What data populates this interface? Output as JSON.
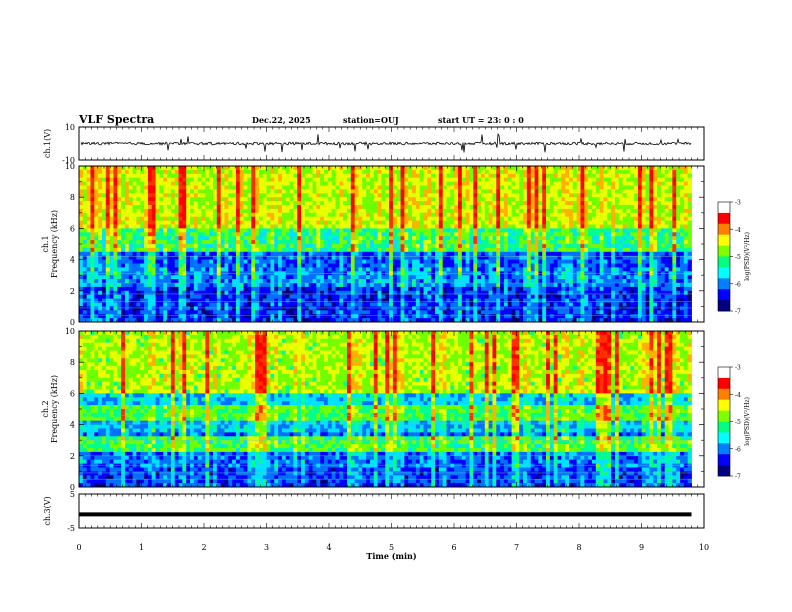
{
  "header": {
    "title": "VLF Spectra",
    "date": "Dec.22, 2025",
    "station": "station=OUJ",
    "start": "start  UT =   23: 0  : 0"
  },
  "chart_data": [
    {
      "type": "line",
      "panel": "ch1-waveform",
      "ylabel": "ch.1(V)",
      "ylim": [
        -10,
        10
      ],
      "yticks": [
        "10",
        "-10"
      ],
      "xlim": [
        0,
        10
      ],
      "description_values": {
        "baseline": 0,
        "typical_amplitude": 1,
        "spike_max": 6
      }
    },
    {
      "type": "heatmap",
      "panel": "ch1-spectrogram",
      "ylabel": "Frequency (kHz)",
      "channel_label": "ch.1",
      "ylim": [
        0,
        10
      ],
      "yticks": [
        "0",
        "2",
        "4",
        "6",
        "8",
        "10"
      ],
      "xlim": [
        0,
        9.8
      ],
      "colorbar": {
        "label": "log(PSD)(V²/Hz)",
        "range": [
          -7,
          -3
        ],
        "ticks": [
          "-3",
          "-4",
          "-5",
          "-6",
          "-7"
        ]
      }
    },
    {
      "type": "heatmap",
      "panel": "ch2-spectrogram",
      "ylabel": "Frequency (kHz)",
      "channel_label": "ch.2",
      "ylim": [
        0,
        10
      ],
      "yticks": [
        "0",
        "2",
        "4",
        "6",
        "8",
        "10"
      ],
      "xlim": [
        0,
        9.8
      ],
      "colorbar": {
        "label": "log(PSD)(V²/Hz)",
        "range": [
          -7,
          -3
        ],
        "ticks": [
          "-3",
          "-4",
          "-5",
          "-6",
          "-7"
        ]
      }
    },
    {
      "type": "line",
      "panel": "ch3-waveform",
      "ylabel": "ch.3(V)",
      "ylim": [
        -5,
        5
      ],
      "yticks": [
        "5",
        "-5"
      ],
      "xlim": [
        0,
        10
      ],
      "description_values": {
        "level": -1
      }
    }
  ],
  "xaxis": {
    "label": "Time (min)",
    "ticks": [
      "0",
      "1",
      "2",
      "3",
      "4",
      "5",
      "6",
      "7",
      "8",
      "9",
      "10"
    ]
  },
  "colors": {
    "palette": [
      "#000080",
      "#0000ff",
      "#0080ff",
      "#00ffff",
      "#00ff80",
      "#80ff00",
      "#ffff00",
      "#ff8000",
      "#ff0000",
      "#ffffff"
    ],
    "line": "#000000"
  }
}
